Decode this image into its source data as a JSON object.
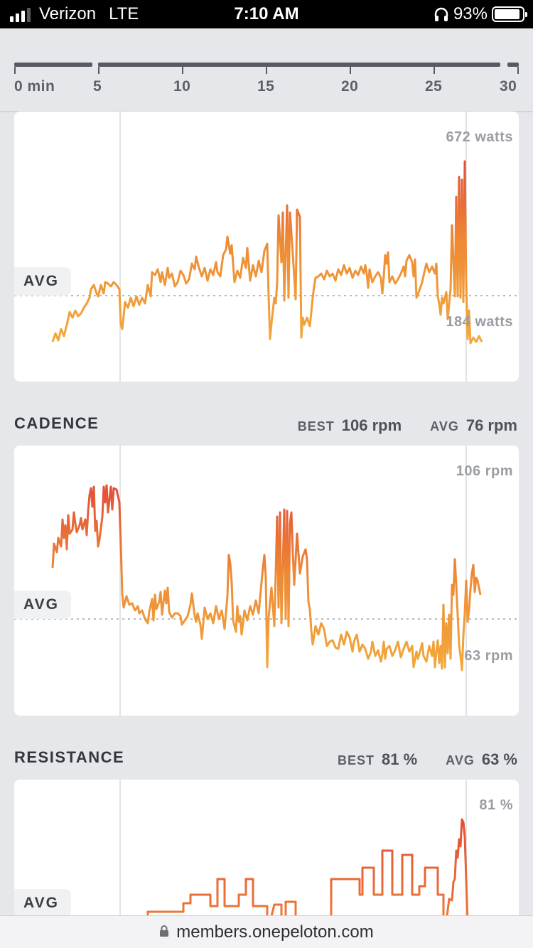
{
  "status_bar": {
    "carrier": "Verizon",
    "network": "LTE",
    "time": "7:10 AM",
    "battery": "93%",
    "battery_level": 0.93
  },
  "timeline": {
    "labels": [
      "0 min",
      "5",
      "10",
      "15",
      "20",
      "25",
      "30"
    ]
  },
  "output": {
    "avg_label": "AVG",
    "max_label": "672 watts",
    "min_label": "184 watts",
    "line_colors": [
      "#f0a03a",
      "#e8583a"
    ]
  },
  "cadence": {
    "title": "CADENCE",
    "best_key": "BEST",
    "best_value": "106 rpm",
    "avg_key": "AVG",
    "avg_value": "76 rpm",
    "avg_label": "AVG",
    "max_label": "106 rpm",
    "min_label": "63 rpm"
  },
  "resistance": {
    "title": "RESISTANCE",
    "best_key": "BEST",
    "best_value": "81 %",
    "avg_key": "AVG",
    "avg_value": "63 %",
    "avg_label": "AVG",
    "max_label": "81 %"
  },
  "browser": {
    "url": "members.onepeloton.com"
  }
}
